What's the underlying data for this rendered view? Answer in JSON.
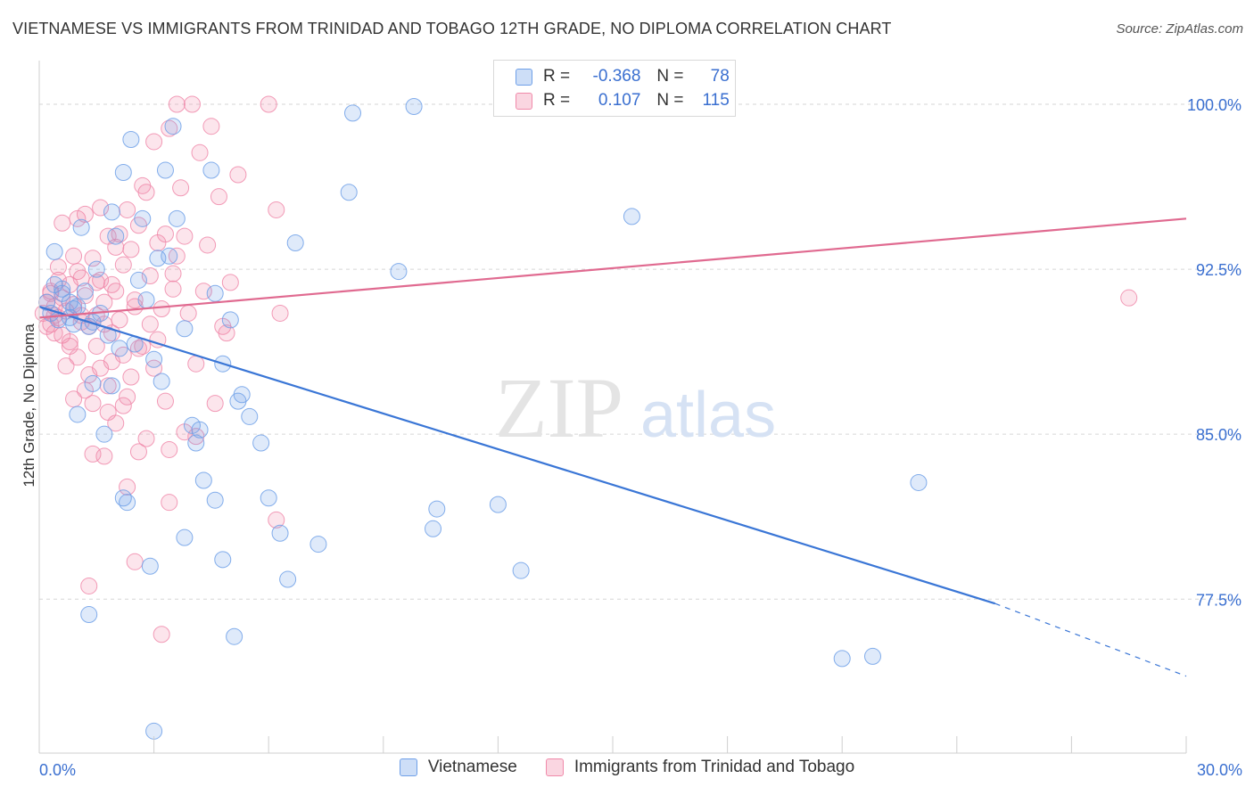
{
  "title": "VIETNAMESE VS IMMIGRANTS FROM TRINIDAD AND TOBAGO 12TH GRADE, NO DIPLOMA CORRELATION CHART",
  "source": "Source: ZipAtlas.com",
  "legend_top": [
    {
      "r_label": "R =",
      "r_value": "-0.368",
      "n_label": "N =",
      "n_value": "78",
      "color": "#6fa0e8"
    },
    {
      "r_label": "R =",
      "r_value": "0.107",
      "n_label": "N =",
      "n_value": "115",
      "color": "#f08aaa"
    }
  ],
  "watermark": {
    "zip": "ZIP",
    "atlas": "atlas"
  },
  "chart_data": {
    "type": "scatter",
    "xlabel": "",
    "ylabel": "12th Grade, No Diploma",
    "xlim": [
      0,
      30
    ],
    "ylim": [
      70.5,
      101.5
    ],
    "x_tick_labels": [
      "0.0%",
      "30.0%"
    ],
    "x_ticks_minor": [
      3,
      6,
      9,
      12,
      15,
      18,
      21,
      24,
      27,
      30
    ],
    "y_ticks": [
      77.5,
      85.0,
      92.5,
      100.0
    ],
    "y_tick_labels": [
      "77.5%",
      "85.0%",
      "92.5%",
      "100.0%"
    ],
    "grid": "horizontal dashed",
    "series": [
      {
        "name": "Vietnamese",
        "color": "#6fa0e8",
        "trend": {
          "x0": 0,
          "y0": 90.8,
          "x1": 25.0,
          "y1": 77.3,
          "x_dash_end": 30,
          "y_dash_end": 74.0,
          "color": "#3a76d6"
        },
        "points": [
          [
            0.2,
            91.0
          ],
          [
            0.3,
            90.5
          ],
          [
            0.4,
            91.8
          ],
          [
            0.5,
            90.2
          ],
          [
            0.6,
            91.4
          ],
          [
            0.8,
            91.0
          ],
          [
            0.9,
            90.0
          ],
          [
            0.4,
            93.3
          ],
          [
            0.6,
            91.6
          ],
          [
            0.8,
            90.3
          ],
          [
            1.0,
            90.8
          ],
          [
            1.2,
            91.5
          ],
          [
            1.4,
            90.1
          ],
          [
            1.6,
            90.5
          ],
          [
            1.8,
            89.5
          ],
          [
            1.5,
            92.5
          ],
          [
            1.1,
            94.4
          ],
          [
            1.3,
            89.9
          ],
          [
            1.0,
            85.9
          ],
          [
            1.7,
            85.0
          ],
          [
            1.9,
            95.1
          ],
          [
            2.0,
            94.0
          ],
          [
            2.2,
            96.9
          ],
          [
            2.4,
            98.4
          ],
          [
            2.6,
            92.0
          ],
          [
            2.8,
            91.1
          ],
          [
            3.0,
            88.4
          ],
          [
            3.2,
            87.4
          ],
          [
            3.5,
            99.0
          ],
          [
            3.6,
            94.8
          ],
          [
            3.8,
            89.8
          ],
          [
            4.0,
            85.4
          ],
          [
            4.2,
            85.2
          ],
          [
            4.5,
            97.0
          ],
          [
            4.6,
            91.4
          ],
          [
            5.0,
            90.2
          ],
          [
            5.2,
            86.5
          ],
          [
            5.5,
            85.8
          ],
          [
            5.8,
            84.6
          ],
          [
            3.4,
            93.1
          ],
          [
            2.1,
            88.9
          ],
          [
            2.5,
            89.1
          ],
          [
            1.9,
            87.2
          ],
          [
            0.9,
            90.7
          ],
          [
            2.7,
            94.8
          ],
          [
            3.3,
            97.0
          ],
          [
            3.1,
            93.0
          ],
          [
            4.1,
            84.6
          ],
          [
            4.3,
            82.9
          ],
          [
            4.8,
            88.2
          ],
          [
            5.3,
            86.8
          ],
          [
            6.0,
            82.1
          ],
          [
            6.7,
            93.7
          ],
          [
            8.1,
            96.0
          ],
          [
            8.2,
            99.6
          ],
          [
            9.4,
            92.4
          ],
          [
            9.8,
            99.9
          ],
          [
            10.3,
            80.7
          ],
          [
            10.4,
            81.6
          ],
          [
            12.0,
            81.8
          ],
          [
            12.6,
            78.8
          ],
          [
            15.5,
            94.9
          ],
          [
            21.0,
            74.8
          ],
          [
            21.8,
            74.9
          ],
          [
            23.0,
            82.8
          ],
          [
            1.3,
            76.8
          ],
          [
            2.3,
            81.9
          ],
          [
            3.8,
            80.3
          ],
          [
            4.8,
            79.3
          ],
          [
            5.1,
            75.8
          ],
          [
            6.3,
            80.5
          ],
          [
            6.5,
            78.4
          ],
          [
            4.6,
            82.0
          ],
          [
            7.3,
            80.0
          ],
          [
            3.0,
            71.5
          ],
          [
            2.9,
            79.0
          ],
          [
            2.2,
            82.1
          ],
          [
            1.4,
            87.3
          ]
        ]
      },
      {
        "name": "Immigrants from Trinidad and Tobago",
        "color": "#f08aaa",
        "trend": {
          "x0": 0,
          "y0": 90.3,
          "x1": 30,
          "y1": 94.8,
          "color": "#e06a90"
        },
        "points": [
          [
            0.1,
            90.5
          ],
          [
            0.2,
            91.0
          ],
          [
            0.3,
            90.0
          ],
          [
            0.3,
            91.5
          ],
          [
            0.4,
            90.8
          ],
          [
            0.5,
            90.3
          ],
          [
            0.5,
            92.0
          ],
          [
            0.6,
            91.2
          ],
          [
            0.6,
            89.5
          ],
          [
            0.7,
            90.6
          ],
          [
            0.8,
            91.8
          ],
          [
            0.8,
            89.2
          ],
          [
            0.9,
            90.9
          ],
          [
            1.0,
            92.4
          ],
          [
            1.0,
            88.5
          ],
          [
            1.1,
            90.1
          ],
          [
            1.2,
            91.3
          ],
          [
            1.2,
            87.0
          ],
          [
            1.3,
            89.9
          ],
          [
            1.4,
            93.0
          ],
          [
            1.4,
            86.4
          ],
          [
            1.5,
            90.4
          ],
          [
            1.6,
            92.0
          ],
          [
            1.6,
            88.0
          ],
          [
            1.7,
            91.0
          ],
          [
            1.8,
            94.0
          ],
          [
            1.8,
            86.0
          ],
          [
            1.9,
            89.6
          ],
          [
            2.0,
            93.5
          ],
          [
            2.0,
            85.5
          ],
          [
            2.1,
            90.2
          ],
          [
            2.2,
            92.7
          ],
          [
            2.2,
            88.6
          ],
          [
            2.3,
            95.2
          ],
          [
            2.4,
            87.6
          ],
          [
            2.5,
            91.1
          ],
          [
            2.6,
            94.5
          ],
          [
            2.6,
            84.2
          ],
          [
            2.7,
            89.0
          ],
          [
            2.8,
            96.0
          ],
          [
            2.9,
            92.2
          ],
          [
            3.0,
            88.0
          ],
          [
            3.1,
            93.7
          ],
          [
            3.2,
            90.7
          ],
          [
            3.3,
            86.5
          ],
          [
            3.4,
            98.9
          ],
          [
            3.5,
            92.3
          ],
          [
            3.6,
            100.0
          ],
          [
            3.7,
            96.2
          ],
          [
            3.8,
            94.0
          ],
          [
            3.9,
            90.5
          ],
          [
            4.0,
            100.0
          ],
          [
            4.1,
            88.2
          ],
          [
            4.3,
            91.5
          ],
          [
            4.5,
            99.0
          ],
          [
            4.7,
            95.8
          ],
          [
            4.8,
            89.9
          ],
          [
            5.0,
            91.9
          ],
          [
            5.2,
            96.8
          ],
          [
            6.2,
            95.2
          ],
          [
            6.3,
            90.5
          ],
          [
            6.2,
            81.1
          ],
          [
            6.0,
            100.0
          ],
          [
            2.5,
            79.2
          ],
          [
            1.3,
            78.1
          ],
          [
            3.2,
            75.9
          ],
          [
            3.4,
            81.9
          ],
          [
            1.7,
            84.0
          ],
          [
            2.2,
            86.3
          ],
          [
            2.8,
            84.8
          ],
          [
            0.9,
            86.6
          ],
          [
            1.1,
            90.4
          ],
          [
            0.7,
            88.1
          ],
          [
            0.4,
            89.6
          ],
          [
            1.5,
            89.0
          ],
          [
            1.9,
            91.8
          ],
          [
            2.4,
            93.4
          ],
          [
            2.9,
            90.0
          ],
          [
            3.3,
            94.1
          ],
          [
            3.6,
            93.1
          ],
          [
            4.2,
            97.8
          ],
          [
            3.0,
            98.3
          ],
          [
            2.1,
            94.1
          ],
          [
            1.6,
            95.3
          ],
          [
            1.1,
            92.1
          ],
          [
            0.5,
            92.6
          ],
          [
            0.2,
            89.9
          ],
          [
            1.3,
            87.7
          ],
          [
            1.8,
            87.2
          ],
          [
            2.7,
            96.3
          ],
          [
            3.5,
            91.6
          ],
          [
            4.4,
            93.6
          ],
          [
            4.9,
            89.6
          ],
          [
            3.8,
            85.1
          ],
          [
            4.1,
            84.9
          ],
          [
            1.4,
            84.1
          ],
          [
            2.3,
            82.6
          ],
          [
            0.6,
            94.6
          ],
          [
            1.0,
            94.8
          ],
          [
            1.5,
            91.9
          ],
          [
            1.9,
            88.3
          ],
          [
            2.6,
            88.9
          ],
          [
            3.1,
            89.3
          ],
          [
            0.8,
            89.0
          ],
          [
            0.3,
            91.4
          ],
          [
            28.5,
            91.2
          ],
          [
            0.9,
            93.1
          ],
          [
            1.2,
            95.0
          ],
          [
            2.0,
            91.5
          ],
          [
            2.5,
            90.8
          ],
          [
            0.4,
            90.4
          ],
          [
            1.7,
            90.0
          ],
          [
            2.3,
            86.7
          ],
          [
            3.4,
            84.3
          ],
          [
            4.6,
            86.4
          ]
        ]
      }
    ]
  }
}
